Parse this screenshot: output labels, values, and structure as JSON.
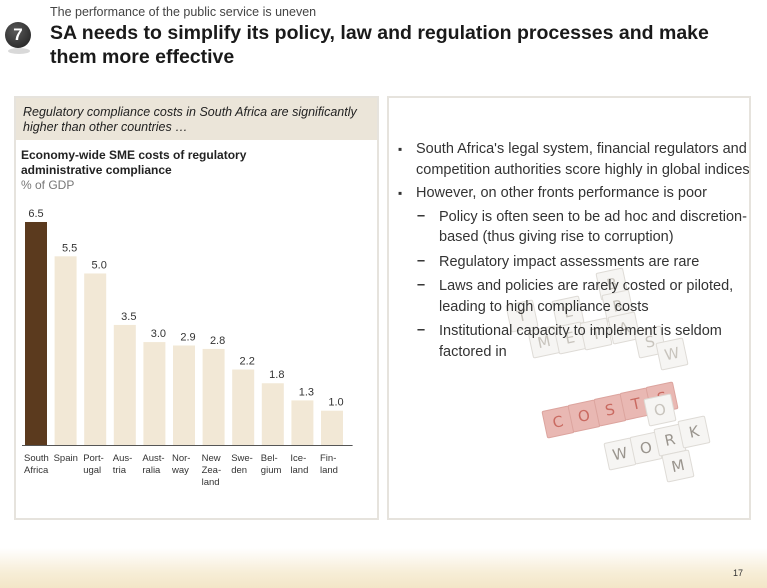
{
  "header": {
    "kicker": "The performance of the public service is uneven",
    "section_number": "7",
    "headline": "SA needs to simplify its policy, law and regulation processes and make them more effective"
  },
  "left_panel": {
    "title": "Regulatory compliance costs in South Africa are significantly higher than other countries …",
    "chart_title": "Economy-wide SME costs of regulatory administrative compliance",
    "chart_unit": "% of GDP"
  },
  "chart_data": {
    "type": "bar",
    "title": "Economy-wide SME costs of regulatory administrative compliance",
    "ylabel": "% of GDP",
    "ylim": [
      0,
      6.5
    ],
    "categories": [
      [
        "South",
        "Africa"
      ],
      [
        "Spain"
      ],
      [
        "Port-",
        "ugal"
      ],
      [
        "Aus-",
        "tria"
      ],
      [
        "Aust-",
        "ralia"
      ],
      [
        "Nor-",
        "way"
      ],
      [
        "New",
        "Zea-",
        "land"
      ],
      [
        "Swe-",
        "den"
      ],
      [
        "Bel-",
        "gium"
      ],
      [
        "Ice-",
        "land"
      ],
      [
        "Fin-",
        "land"
      ]
    ],
    "values": [
      6.5,
      5.5,
      5.0,
      3.5,
      3.0,
      2.9,
      2.8,
      2.2,
      1.8,
      1.3,
      1.0
    ],
    "value_labels": [
      "6.5",
      "5.5",
      "5.0",
      "3.5",
      "3.0",
      "2.9",
      "2.8",
      "2.2",
      "1.8",
      "1.3",
      "1.0"
    ],
    "colors": {
      "highlight": "#5b3a1e",
      "other": "#f2e8d6",
      "axis": "#555555"
    }
  },
  "right_panel": {
    "bullets": [
      {
        "text": "South Africa's legal system, financial regulators and competition authorities score highly in global indices",
        "sub": []
      },
      {
        "text": "However, on other fronts performance is poor",
        "sub": [
          "Policy is often seen to be ad hoc and discretion-based (thus giving rise to corruption)",
          "Regulatory impact assessments are rare",
          "Laws and policies are rarely costed or piloted, leading to high compliance costs",
          "Institutional capacity to implement is seldom factored in"
        ]
      }
    ],
    "bullet_mark": "▪",
    "dash_mark": "–"
  },
  "footer": {
    "page_number": "17"
  }
}
